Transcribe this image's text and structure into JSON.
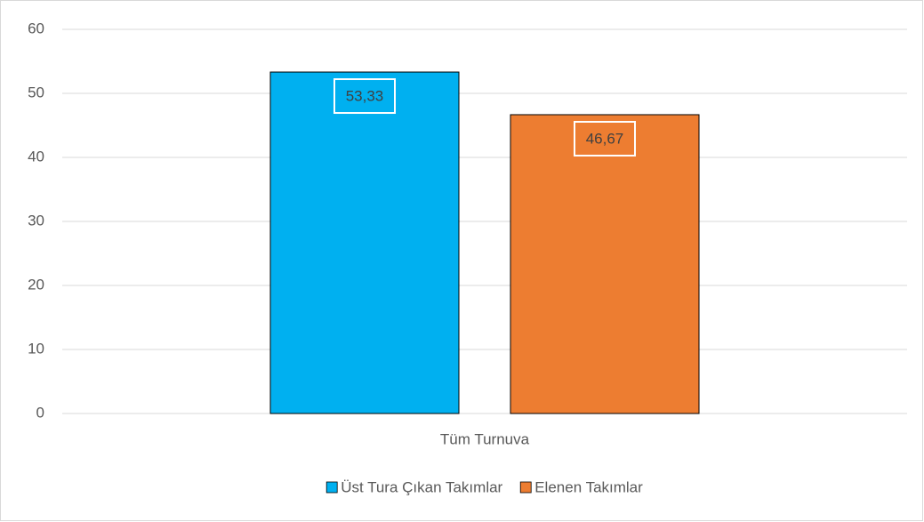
{
  "chart_data": {
    "type": "bar",
    "categories": [
      "Tüm Turnuva"
    ],
    "series": [
      {
        "name": "Üst Tura Çıkan Takımlar",
        "color": "#00b0f0",
        "values": [
          53.33
        ],
        "value_labels": [
          "53,33"
        ]
      },
      {
        "name": "Elenen Takımlar",
        "color": "#ed7d31",
        "values": [
          46.67
        ],
        "value_labels": [
          "46,67"
        ]
      }
    ],
    "ylim": [
      0,
      60
    ],
    "yticks": [
      0,
      10,
      20,
      30,
      40,
      50,
      60
    ],
    "grid": true,
    "legend": "bottom"
  }
}
